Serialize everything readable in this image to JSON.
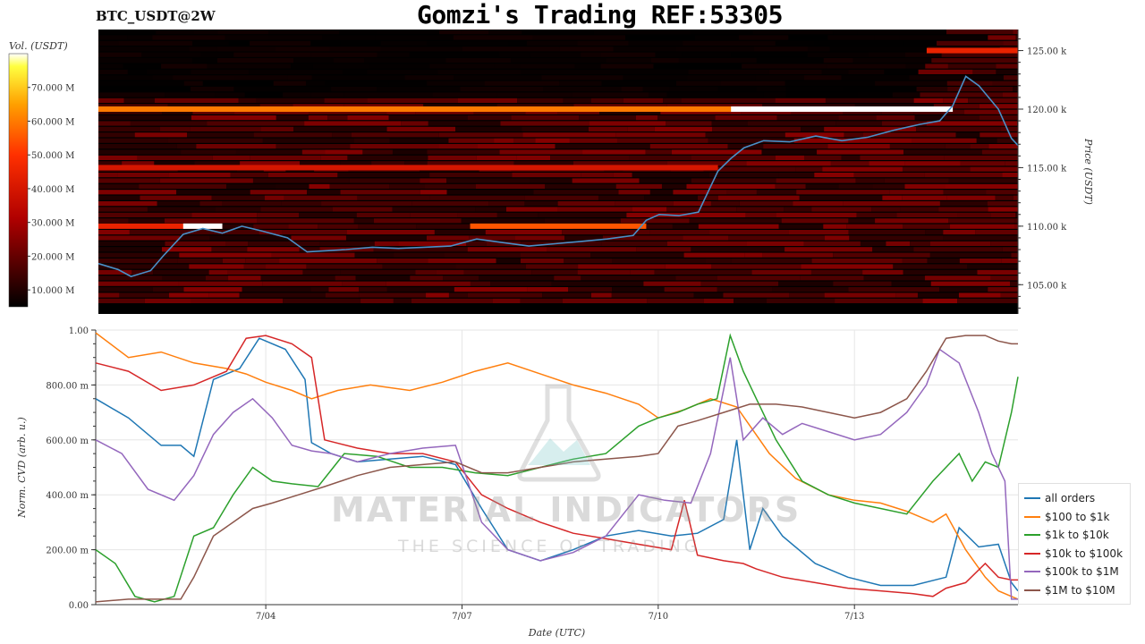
{
  "header": {
    "pair": "BTC_USDT@2W",
    "title": "Gomzi's Trading REF:53305"
  },
  "watermark": {
    "brand": "MATERIAL INDICATORS",
    "tagline": "THE SCIENCE OF TRADING",
    "logo_icon": "flask-icon"
  },
  "colors": {
    "price_line": "#4a90c8",
    "all_orders": "#1f77b4",
    "100_to_1k": "#ff7f0e",
    "1k_to_10k": "#2ca02c",
    "10k_to_100k": "#d62728",
    "100k_to_1M": "#9467bd",
    "1M_to_10M": "#8c564b"
  },
  "chart_data": [
    {
      "type": "heatmap",
      "title": "Gomzi's Trading REF:53305",
      "colorbar_label": "Vol. (USDT)",
      "colorbar_ticks": [
        "10.000 M",
        "20.000 M",
        "30.000 M",
        "40.000 M",
        "50.000 M",
        "60.000 M",
        "70.000 M"
      ],
      "colorbar_range": [
        5,
        80
      ],
      "ylabel": "Price (USDT)",
      "y_ticks": [
        "105.00 k",
        "110.00 k",
        "115.00 k",
        "120.00 k",
        "125.00 k"
      ],
      "y_tick_values": [
        105000,
        110000,
        115000,
        120000,
        125000
      ],
      "ylim": [
        102500,
        126800
      ],
      "xlim": [
        0,
        14.1
      ],
      "liquidity_bands": [
        {
          "price": 120000,
          "x_start": 0,
          "x_end": 13.1,
          "volume_M": 60,
          "peak_from": 9.7,
          "peak_volume_M": 80
        },
        {
          "price": 115000,
          "x_start": 0,
          "x_end": 9.5,
          "volume_M": 40
        },
        {
          "price": 110000,
          "x_start": 0,
          "x_end": 1.9,
          "volume_M": 45,
          "peak_from": 1.3,
          "peak_volume_M": 80
        },
        {
          "price": 110000,
          "x_start": 5.7,
          "x_end": 8.4,
          "volume_M": 55
        },
        {
          "price": 125000,
          "x_start": 12.7,
          "x_end": 14.1,
          "volume_M": 45
        }
      ],
      "price_series": {
        "name": "Price",
        "x": [
          0,
          0.3,
          0.5,
          0.8,
          1.0,
          1.3,
          1.6,
          1.9,
          2.2,
          2.5,
          2.9,
          3.2,
          3.5,
          3.8,
          4.2,
          4.6,
          5.0,
          5.4,
          5.8,
          6.2,
          6.6,
          7.0,
          7.4,
          7.8,
          8.2,
          8.4,
          8.6,
          8.9,
          9.2,
          9.5,
          9.7,
          9.9,
          10.2,
          10.6,
          11.0,
          11.4,
          11.8,
          12.2,
          12.6,
          12.9,
          13.1,
          13.3,
          13.5,
          13.8,
          14.0,
          14.1
        ],
        "y": [
          106800,
          106300,
          105700,
          106200,
          107500,
          109300,
          109800,
          109400,
          110000,
          109600,
          109000,
          107800,
          107900,
          108000,
          108200,
          108100,
          108200,
          108300,
          108900,
          108600,
          108300,
          108500,
          108700,
          108900,
          109200,
          110500,
          111000,
          110900,
          111200,
          114700,
          115800,
          116700,
          117300,
          117200,
          117700,
          117300,
          117600,
          118200,
          118700,
          119000,
          120300,
          122800,
          122000,
          120000,
          117500,
          116900
        ]
      }
    },
    {
      "type": "line",
      "xlabel": "Date (UTC)",
      "ylabel": "Norm. CVD (arb. u.)",
      "x_ticks": [
        "7/04",
        "7/07",
        "7/10",
        "7/13"
      ],
      "x_tick_values": [
        2.6,
        5.6,
        8.6,
        11.6
      ],
      "y_ticks": [
        "0.00",
        "200.00 m",
        "400.00 m",
        "600.00 m",
        "800.00 m",
        "1.00"
      ],
      "y_tick_values": [
        0,
        0.2,
        0.4,
        0.6,
        0.8,
        1.0
      ],
      "ylim": [
        0,
        1.0
      ],
      "xlim": [
        0,
        14.1
      ],
      "legend_position": "bottom-right",
      "series": [
        {
          "name": "all orders",
          "x": [
            0,
            0.5,
            1.0,
            1.3,
            1.5,
            1.8,
            2.0,
            2.2,
            2.5,
            2.9,
            3.2,
            3.3,
            3.6,
            4.0,
            4.5,
            5.0,
            5.5,
            5.9,
            6.3,
            6.8,
            7.3,
            7.8,
            8.3,
            8.8,
            9.2,
            9.6,
            9.8,
            10.0,
            10.2,
            10.5,
            11.0,
            11.5,
            12.0,
            12.5,
            13.0,
            13.2,
            13.5,
            13.8,
            14.0,
            14.1
          ],
          "y": [
            0.75,
            0.68,
            0.58,
            0.58,
            0.54,
            0.82,
            0.84,
            0.86,
            0.97,
            0.93,
            0.82,
            0.59,
            0.55,
            0.52,
            0.53,
            0.54,
            0.51,
            0.35,
            0.2,
            0.16,
            0.2,
            0.25,
            0.27,
            0.25,
            0.26,
            0.31,
            0.6,
            0.2,
            0.35,
            0.25,
            0.15,
            0.1,
            0.07,
            0.07,
            0.1,
            0.28,
            0.21,
            0.22,
            0.08,
            0.05
          ]
        },
        {
          "name": "$100 to $1k",
          "x": [
            0,
            0.5,
            1.0,
            1.5,
            2.0,
            2.3,
            2.6,
            3.0,
            3.3,
            3.7,
            4.2,
            4.8,
            5.3,
            5.8,
            6.3,
            6.8,
            7.3,
            7.8,
            8.3,
            8.6,
            9.0,
            9.4,
            9.8,
            10.3,
            10.7,
            11.2,
            11.6,
            12.0,
            12.4,
            12.8,
            13.0,
            13.3,
            13.6,
            13.8,
            14.0,
            14.1
          ],
          "y": [
            0.99,
            0.9,
            0.92,
            0.88,
            0.86,
            0.84,
            0.81,
            0.78,
            0.75,
            0.78,
            0.8,
            0.78,
            0.81,
            0.85,
            0.88,
            0.84,
            0.8,
            0.77,
            0.73,
            0.68,
            0.71,
            0.75,
            0.72,
            0.55,
            0.46,
            0.4,
            0.38,
            0.37,
            0.34,
            0.3,
            0.33,
            0.2,
            0.1,
            0.05,
            0.03,
            0.02
          ]
        },
        {
          "name": "$1k to $10k",
          "x": [
            0,
            0.3,
            0.6,
            0.9,
            1.2,
            1.5,
            1.8,
            2.1,
            2.4,
            2.7,
            3.0,
            3.4,
            3.8,
            4.3,
            4.8,
            5.3,
            5.8,
            6.3,
            6.8,
            7.3,
            7.8,
            8.3,
            8.6,
            8.9,
            9.2,
            9.5,
            9.7,
            9.9,
            10.1,
            10.4,
            10.8,
            11.2,
            11.6,
            12.0,
            12.4,
            12.8,
            13.2,
            13.4,
            13.6,
            13.8,
            14.0,
            14.1
          ],
          "y": [
            0.2,
            0.15,
            0.03,
            0.01,
            0.03,
            0.25,
            0.28,
            0.4,
            0.5,
            0.45,
            0.44,
            0.43,
            0.55,
            0.54,
            0.5,
            0.5,
            0.48,
            0.47,
            0.5,
            0.53,
            0.55,
            0.65,
            0.68,
            0.7,
            0.73,
            0.75,
            0.98,
            0.85,
            0.75,
            0.6,
            0.45,
            0.4,
            0.37,
            0.35,
            0.33,
            0.45,
            0.55,
            0.45,
            0.52,
            0.5,
            0.7,
            0.83
          ]
        },
        {
          "name": "$10k to $100k",
          "x": [
            0,
            0.5,
            1.0,
            1.5,
            2.0,
            2.3,
            2.6,
            3.0,
            3.3,
            3.5,
            4.0,
            4.5,
            5.0,
            5.5,
            5.9,
            6.3,
            6.8,
            7.3,
            7.8,
            8.3,
            8.8,
            9.0,
            9.2,
            9.6,
            9.9,
            10.1,
            10.5,
            11.0,
            11.5,
            12.0,
            12.5,
            12.8,
            13.0,
            13.3,
            13.6,
            13.8,
            14.0,
            14.1
          ],
          "y": [
            0.88,
            0.85,
            0.78,
            0.8,
            0.85,
            0.97,
            0.98,
            0.95,
            0.9,
            0.6,
            0.57,
            0.55,
            0.55,
            0.52,
            0.4,
            0.35,
            0.3,
            0.26,
            0.24,
            0.22,
            0.2,
            0.38,
            0.18,
            0.16,
            0.15,
            0.13,
            0.1,
            0.08,
            0.06,
            0.05,
            0.04,
            0.03,
            0.06,
            0.08,
            0.15,
            0.1,
            0.09,
            0.09
          ]
        },
        {
          "name": "$100k to $1M",
          "x": [
            0,
            0.4,
            0.8,
            1.2,
            1.5,
            1.8,
            2.1,
            2.4,
            2.7,
            3.0,
            3.3,
            3.6,
            4.0,
            4.5,
            5.0,
            5.5,
            5.9,
            6.3,
            6.8,
            7.3,
            7.8,
            8.3,
            8.7,
            9.1,
            9.4,
            9.7,
            9.9,
            10.2,
            10.5,
            10.8,
            11.2,
            11.6,
            12.0,
            12.4,
            12.7,
            12.9,
            13.2,
            13.5,
            13.7,
            13.9,
            14.0,
            14.1
          ],
          "y": [
            0.6,
            0.55,
            0.42,
            0.38,
            0.47,
            0.62,
            0.7,
            0.75,
            0.68,
            0.58,
            0.56,
            0.55,
            0.52,
            0.55,
            0.57,
            0.58,
            0.3,
            0.2,
            0.16,
            0.19,
            0.25,
            0.4,
            0.38,
            0.37,
            0.55,
            0.9,
            0.6,
            0.68,
            0.62,
            0.66,
            0.63,
            0.6,
            0.62,
            0.7,
            0.8,
            0.93,
            0.88,
            0.7,
            0.55,
            0.45,
            0.02,
            0.02
          ]
        },
        {
          "name": "$1M to $10M",
          "x": [
            0,
            0.5,
            1.0,
            1.3,
            1.5,
            1.8,
            2.1,
            2.4,
            2.7,
            3.1,
            3.5,
            4.0,
            4.5,
            5.0,
            5.5,
            5.9,
            6.3,
            6.8,
            7.3,
            7.8,
            8.3,
            8.6,
            8.9,
            9.2,
            9.6,
            10.0,
            10.4,
            10.8,
            11.2,
            11.6,
            12.0,
            12.4,
            12.7,
            13.0,
            13.3,
            13.6,
            13.8,
            14.0,
            14.1
          ],
          "y": [
            0.01,
            0.02,
            0.02,
            0.02,
            0.1,
            0.25,
            0.3,
            0.35,
            0.37,
            0.4,
            0.43,
            0.47,
            0.5,
            0.51,
            0.52,
            0.48,
            0.48,
            0.5,
            0.52,
            0.53,
            0.54,
            0.55,
            0.65,
            0.67,
            0.7,
            0.73,
            0.73,
            0.72,
            0.7,
            0.68,
            0.7,
            0.75,
            0.85,
            0.97,
            0.98,
            0.98,
            0.96,
            0.95,
            0.95
          ]
        }
      ]
    }
  ]
}
